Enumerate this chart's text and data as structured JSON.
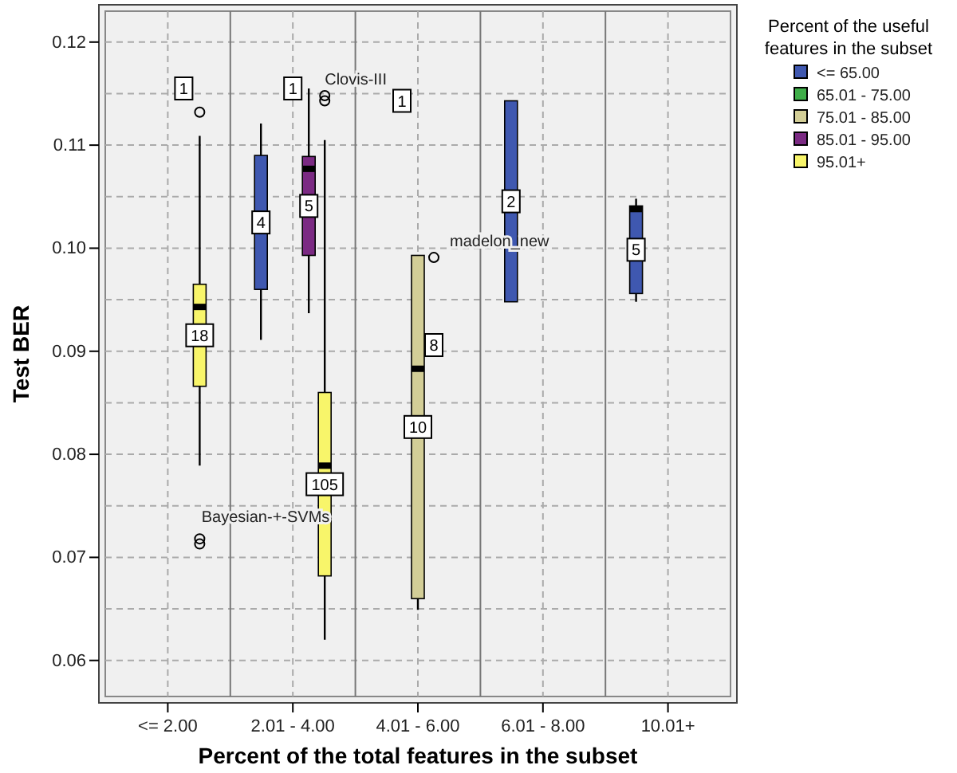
{
  "chart_data": {
    "type": "box",
    "xlabel": "Percent of the total features in the subset",
    "ylabel": "Test BER",
    "legend_title": "Percent of the useful features in the subset",
    "legend": "top right",
    "grid": true,
    "categories": [
      "<= 2.00",
      "2.01 - 4.00",
      "4.01 - 6.00",
      "6.01 - 8.00",
      "10.01+"
    ],
    "ylim": [
      0.0565,
      0.123
    ],
    "yticks": [
      {
        "value": 0.06,
        "label": "0.06"
      },
      {
        "value": 0.065,
        "label": null
      },
      {
        "value": 0.07,
        "label": "0.07"
      },
      {
        "value": 0.075,
        "label": null
      },
      {
        "value": 0.08,
        "label": "0.08"
      },
      {
        "value": 0.085,
        "label": null
      },
      {
        "value": 0.09,
        "label": "0.09"
      },
      {
        "value": 0.095,
        "label": null
      },
      {
        "value": 0.1,
        "label": "0.10"
      },
      {
        "value": 0.105,
        "label": null
      },
      {
        "value": 0.11,
        "label": "0.11"
      },
      {
        "value": 0.115,
        "label": null
      },
      {
        "value": 0.12,
        "label": "0.12"
      }
    ],
    "series": [
      {
        "name": "<= 65.00",
        "color": "#3f58b0",
        "boxes": [
          null,
          {
            "low": 0.0911,
            "q1": 0.096,
            "median": 0.1033,
            "q3": 0.109,
            "high": 0.1121
          },
          null,
          {
            "low": 0.0948,
            "q1": 0.0948,
            "median": 0.1045,
            "q3": 0.1143,
            "high": 0.1143
          },
          {
            "low": 0.0948,
            "q1": 0.0956,
            "median": 0.1038,
            "q3": 0.1041,
            "high": 0.1048
          }
        ],
        "value_labels": [
          null,
          "4",
          null,
          "2",
          "5"
        ]
      },
      {
        "name": "65.01 - 75.00",
        "color": "#3fae49",
        "boxes": [
          null,
          null,
          {
            "low": 0.1143,
            "q1": 0.1143,
            "median": 0.1143,
            "q3": 0.1143,
            "high": 0.1143
          },
          null,
          null
        ],
        "value_labels": [
          null,
          null,
          "1",
          null,
          null
        ]
      },
      {
        "name": "75.01 - 85.00",
        "color": "#d3ce97",
        "boxes": [
          null,
          {
            "low": 0.1155,
            "q1": 0.1155,
            "median": 0.1155,
            "q3": 0.1155,
            "high": 0.1155
          },
          {
            "low": 0.0649,
            "q1": 0.066,
            "median": 0.0883,
            "q3": 0.0993,
            "high": 0.0993
          },
          null,
          null
        ],
        "value_labels": [
          null,
          "1",
          "10",
          null,
          null
        ]
      },
      {
        "name": "85.01 - 95.00",
        "color": "#7b2a83",
        "boxes": [
          {
            "low": 0.1155,
            "q1": 0.1155,
            "median": 0.1155,
            "q3": 0.1155,
            "high": 0.1155
          },
          {
            "low": 0.0937,
            "q1": 0.0993,
            "median": 0.1077,
            "q3": 0.1089,
            "high": 0.1155
          },
          {
            "low": 0.0904,
            "q1": 0.0904,
            "median": 0.0906,
            "q3": 0.0908,
            "high": 0.091,
            "outliers": [
              0.0991
            ]
          },
          null,
          null
        ],
        "value_labels": [
          "1",
          "5",
          "8",
          null,
          null
        ]
      },
      {
        "name": "95.01+",
        "color": "#f8f56a",
        "boxes": [
          {
            "low": 0.0789,
            "q1": 0.0866,
            "median": 0.0943,
            "q3": 0.0965,
            "high": 0.1109,
            "outliers": [
              0.1132,
              0.0718,
              0.0713
            ]
          },
          {
            "low": 0.062,
            "q1": 0.0682,
            "median": 0.0789,
            "q3": 0.086,
            "high": 0.1105,
            "outliers": [
              0.1148,
              0.1143
            ]
          },
          null,
          null,
          null
        ],
        "value_labels": [
          "18",
          "105",
          null,
          null,
          null
        ]
      }
    ],
    "annotations": [
      {
        "text": "Clovis-III",
        "x": "2.01 - 4.00",
        "y": 0.1148
      },
      "Bayesian-+-SVMs",
      {
        "text": "madelon_new",
        "x": "4.01 - 6.00",
        "y": 0.0991
      }
    ]
  }
}
